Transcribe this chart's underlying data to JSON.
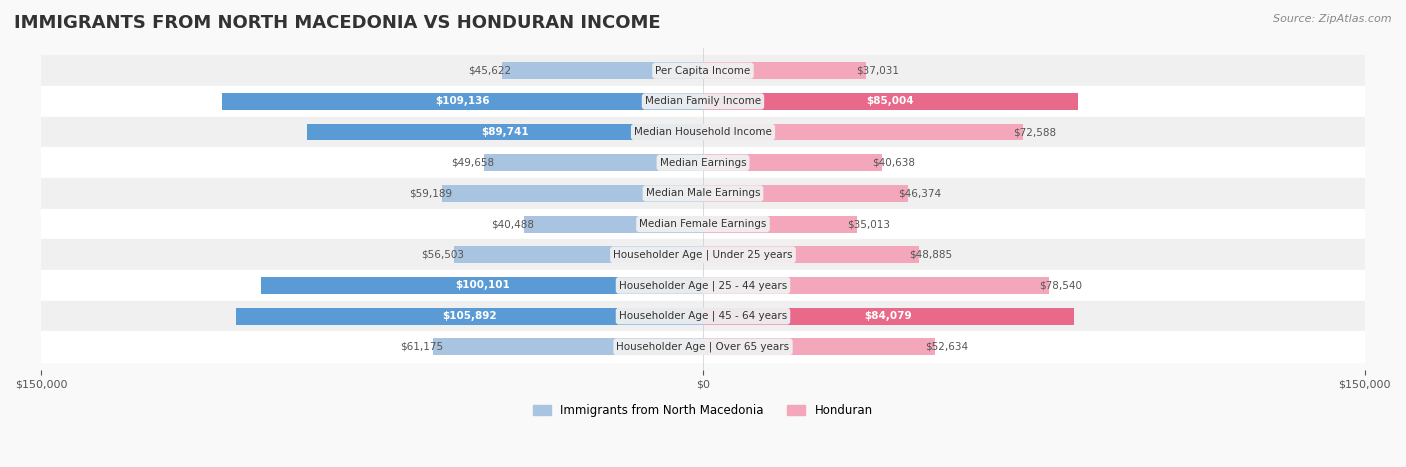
{
  "title": "IMMIGRANTS FROM NORTH MACEDONIA VS HONDURAN INCOME",
  "source": "Source: ZipAtlas.com",
  "categories": [
    "Per Capita Income",
    "Median Family Income",
    "Median Household Income",
    "Median Earnings",
    "Median Male Earnings",
    "Median Female Earnings",
    "Householder Age | Under 25 years",
    "Householder Age | 25 - 44 years",
    "Householder Age | 45 - 64 years",
    "Householder Age | Over 65 years"
  ],
  "north_macedonia": [
    45622,
    109136,
    89741,
    49658,
    59189,
    40488,
    56503,
    100101,
    105892,
    61175
  ],
  "honduran": [
    37031,
    85004,
    72588,
    40638,
    46374,
    35013,
    48885,
    78540,
    84079,
    52634
  ],
  "nm_color_light": "#a8c4e0",
  "nm_color_dark": "#5b9bd5",
  "hon_color_light": "#f4a7bb",
  "hon_color_dark": "#e8698a",
  "bar_height": 0.55,
  "max_value": 150000,
  "bg_color": "#f5f5f5",
  "row_bg_even": "#f0f0f0",
  "row_bg_odd": "#ffffff",
  "label_color_dark": "#333333",
  "label_color_white": "#ffffff",
  "center_label_bg": "#f0f0f0",
  "white_threshold": 80000
}
